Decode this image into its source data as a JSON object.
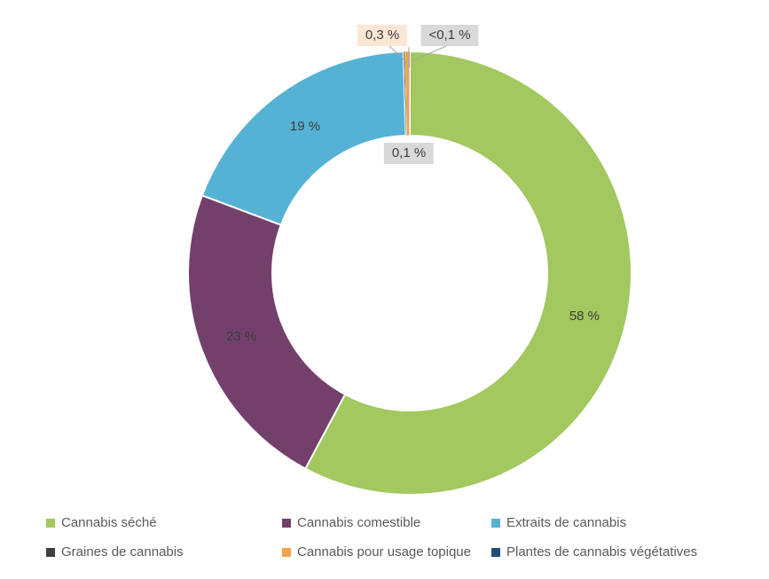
{
  "chart_data": {
    "type": "pie",
    "subtype": "donut",
    "title": "",
    "legend_position": "bottom",
    "grid": false,
    "leader_line_color": "#a6a6a6",
    "label_text_color": "#3d3d3d",
    "legend_text_color": "#595959",
    "series": [
      {
        "name": "Cannabis séché",
        "value": 57.8,
        "label": "58 %",
        "color": "#a2c85f",
        "label_mode": "inside"
      },
      {
        "name": "Cannabis comestible",
        "value": 22.9,
        "label": "23 %",
        "color": "#73406c",
        "label_mode": "inside"
      },
      {
        "name": "Extraits de cannabis",
        "value": 18.85,
        "label": "19 %",
        "color": "#55b2d4",
        "label_mode": "inside"
      },
      {
        "name": "Graines de cannabis",
        "value": 0.1,
        "label": "0,1 %",
        "color": "#3f3f3f",
        "label_mode": "callout",
        "callout_bg": "#d9d9d9"
      },
      {
        "name": "Cannabis pour usage topique",
        "value": 0.3,
        "label": "0,3 %",
        "color": "#f2a249",
        "label_mode": "callout",
        "callout_bg": "#fce6d4"
      },
      {
        "name": "Plantes de cannabis végétatives",
        "value": 0.05,
        "label": "<0,1 %",
        "color": "#1f4e79",
        "label_mode": "callout",
        "callout_bg": "#d9d9d9"
      }
    ]
  }
}
